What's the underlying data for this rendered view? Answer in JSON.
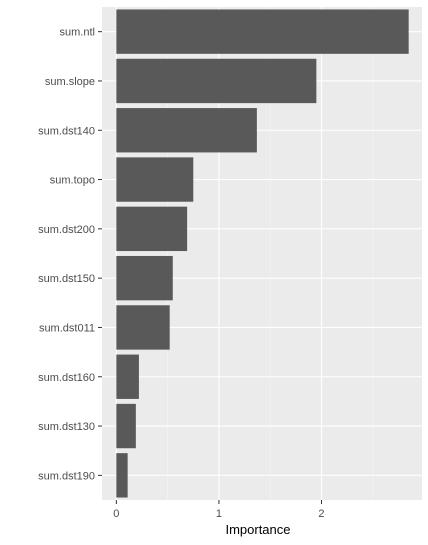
{
  "chart_data": {
    "type": "bar",
    "orientation": "horizontal",
    "categories": [
      "sum.ntl",
      "sum.slope",
      "sum.dst140",
      "sum.topo",
      "sum.dst200",
      "sum.dst150",
      "sum.dst011",
      "sum.dst160",
      "sum.dst130",
      "sum.dst190"
    ],
    "values": [
      2.85,
      1.95,
      1.37,
      0.75,
      0.69,
      0.55,
      0.52,
      0.22,
      0.19,
      0.11
    ],
    "xlabel": "Importance",
    "ylabel": "",
    "title": "",
    "xlim": [
      -0.14,
      2.98
    ],
    "xticks": [
      0,
      1,
      2
    ],
    "xtick_labels": [
      "0",
      "1",
      "2"
    ],
    "grid": true,
    "colors": {
      "bar": "#595959",
      "panel": "#ebebeb",
      "grid_major": "#ffffff",
      "grid_minor": "#f5f5f5"
    }
  }
}
